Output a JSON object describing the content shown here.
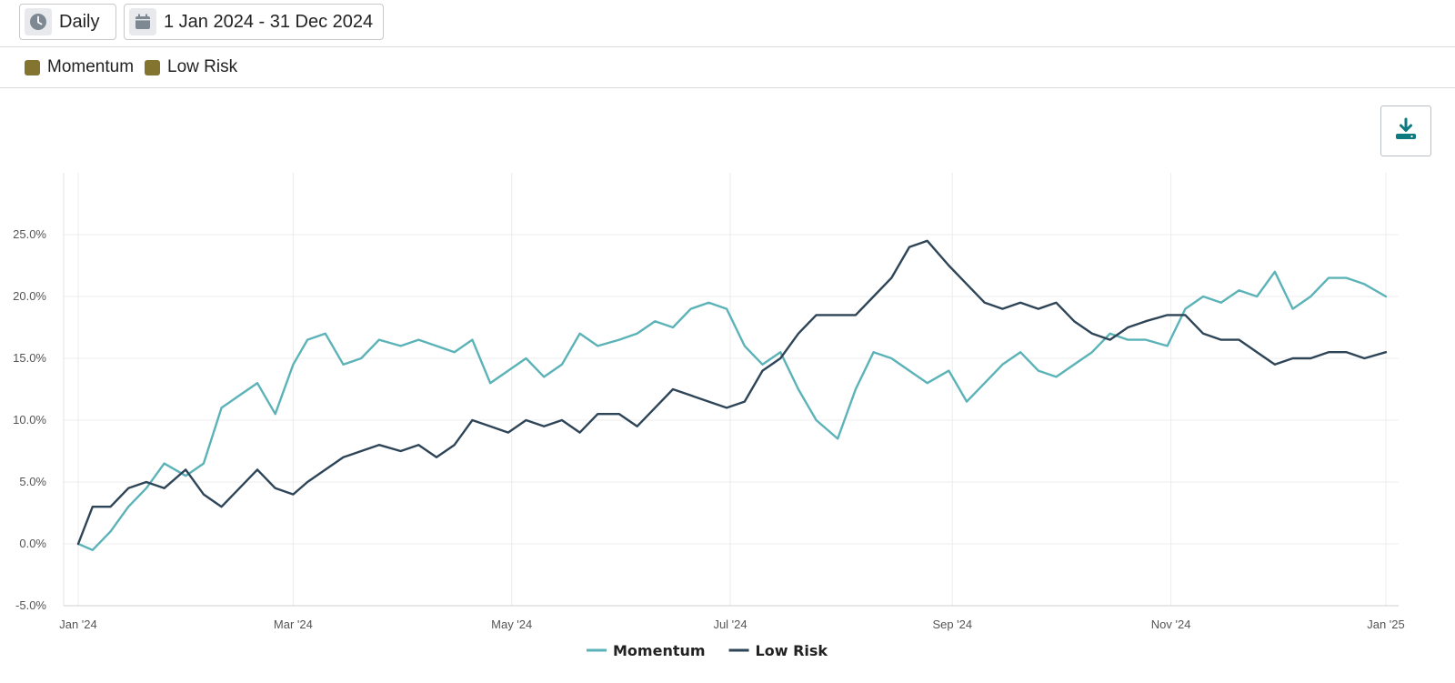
{
  "toolbar": {
    "frequency_label": "Daily",
    "frequency_icon": "clock-icon",
    "date_range_label": "1 Jan 2024 - 31 Dec 2024",
    "date_icon": "calendar-icon"
  },
  "legend_bar": {
    "items": [
      {
        "label": "Momentum",
        "color": "#837430"
      },
      {
        "label": "Low Risk",
        "color": "#837430"
      }
    ]
  },
  "download": {
    "icon": "download-icon",
    "color": "#0d7a80"
  },
  "chart_data": {
    "type": "line",
    "x_type": "date",
    "xlim": [
      "2024-01-01",
      "2024-12-31"
    ],
    "ylim": [
      -5,
      30
    ],
    "yticks": [
      -5,
      0,
      5,
      10,
      15,
      20,
      25
    ],
    "ytick_labels": [
      "-5.0%",
      "0.0%",
      "5.0%",
      "10.0%",
      "15.0%",
      "20.0%",
      "25.0%"
    ],
    "xticks": [
      "2024-01-01",
      "2024-03-01",
      "2024-05-01",
      "2024-07-01",
      "2024-09-01",
      "2024-11-01",
      "2024-12-31"
    ],
    "xtick_labels": [
      "Jan '24",
      "Mar '24",
      "May '24",
      "Jul '24",
      "Sep '24",
      "Nov '24",
      "Jan '25"
    ],
    "grid": true,
    "legend_position": "bottom-center",
    "x": [
      "2024-01-01",
      "2024-01-05",
      "2024-01-10",
      "2024-01-15",
      "2024-01-20",
      "2024-01-25",
      "2024-01-31",
      "2024-02-05",
      "2024-02-10",
      "2024-02-15",
      "2024-02-20",
      "2024-02-25",
      "2024-03-01",
      "2024-03-05",
      "2024-03-10",
      "2024-03-15",
      "2024-03-20",
      "2024-03-25",
      "2024-03-31",
      "2024-04-05",
      "2024-04-10",
      "2024-04-15",
      "2024-04-20",
      "2024-04-25",
      "2024-04-30",
      "2024-05-05",
      "2024-05-10",
      "2024-05-15",
      "2024-05-20",
      "2024-05-25",
      "2024-05-31",
      "2024-06-05",
      "2024-06-10",
      "2024-06-15",
      "2024-06-20",
      "2024-06-25",
      "2024-06-30",
      "2024-07-05",
      "2024-07-10",
      "2024-07-15",
      "2024-07-20",
      "2024-07-25",
      "2024-07-31",
      "2024-08-05",
      "2024-08-10",
      "2024-08-15",
      "2024-08-20",
      "2024-08-25",
      "2024-08-31",
      "2024-09-05",
      "2024-09-10",
      "2024-09-15",
      "2024-09-20",
      "2024-09-25",
      "2024-09-30",
      "2024-10-05",
      "2024-10-10",
      "2024-10-15",
      "2024-10-20",
      "2024-10-25",
      "2024-10-31",
      "2024-11-05",
      "2024-11-10",
      "2024-11-15",
      "2024-11-20",
      "2024-11-25",
      "2024-11-30",
      "2024-12-05",
      "2024-12-10",
      "2024-12-15",
      "2024-12-20",
      "2024-12-25",
      "2024-12-31"
    ],
    "series": [
      {
        "name": "Momentum",
        "color": "#5bb3b8",
        "values": [
          0.0,
          -0.5,
          1.0,
          3.0,
          4.5,
          6.5,
          5.5,
          6.5,
          11.0,
          12.0,
          13.0,
          10.5,
          14.5,
          16.5,
          17.0,
          14.5,
          15.0,
          16.5,
          16.0,
          16.5,
          16.0,
          15.5,
          16.5,
          13.0,
          14.0,
          15.0,
          13.5,
          14.5,
          17.0,
          16.0,
          16.5,
          17.0,
          18.0,
          17.5,
          19.0,
          19.5,
          19.0,
          16.0,
          14.5,
          15.5,
          12.5,
          10.0,
          8.5,
          12.5,
          15.5,
          15.0,
          14.0,
          13.0,
          14.0,
          11.5,
          13.0,
          14.5,
          15.5,
          14.0,
          13.5,
          14.5,
          15.5,
          17.0,
          16.5,
          16.5,
          16.0,
          19.0,
          20.0,
          19.5,
          20.5,
          20.0,
          22.0,
          19.0,
          20.0,
          21.5,
          21.5,
          21.0,
          20.0
        ]
      },
      {
        "name": "Low Risk",
        "color": "#2e4457",
        "values": [
          0.0,
          3.0,
          3.0,
          4.5,
          5.0,
          4.5,
          6.0,
          4.0,
          3.0,
          4.5,
          6.0,
          4.5,
          4.0,
          5.0,
          6.0,
          7.0,
          7.5,
          8.0,
          7.5,
          8.0,
          7.0,
          8.0,
          10.0,
          9.5,
          9.0,
          10.0,
          9.5,
          10.0,
          9.0,
          10.5,
          10.5,
          9.5,
          11.0,
          12.5,
          12.0,
          11.5,
          11.0,
          11.5,
          14.0,
          15.0,
          17.0,
          18.5,
          18.5,
          18.5,
          20.0,
          21.5,
          24.0,
          24.5,
          22.5,
          21.0,
          19.5,
          19.0,
          19.5,
          19.0,
          19.5,
          18.0,
          17.0,
          16.5,
          17.5,
          18.0,
          18.5,
          18.5,
          17.0,
          16.5,
          16.5,
          15.5,
          14.5,
          15.0,
          15.0,
          15.5,
          15.5,
          15.0,
          15.5
        ]
      }
    ]
  }
}
